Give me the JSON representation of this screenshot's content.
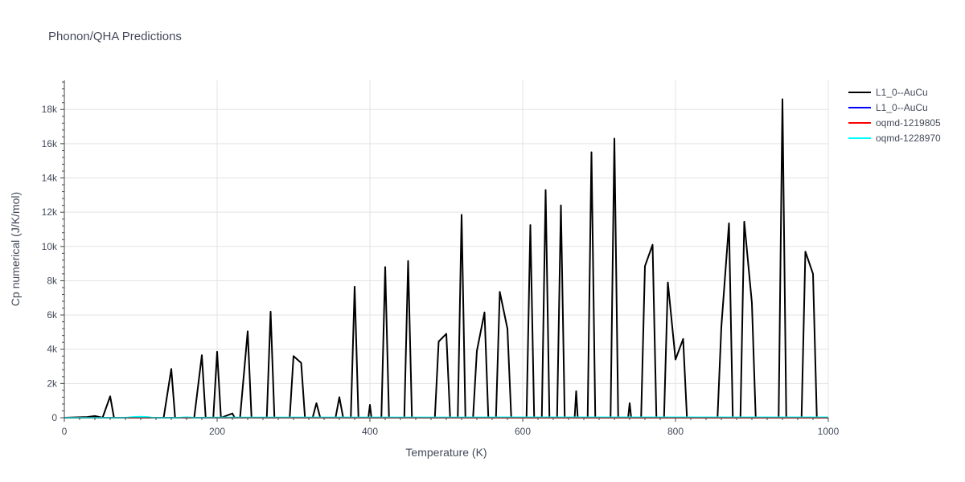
{
  "chart_data": {
    "type": "line",
    "title": "Phonon/QHA Predictions",
    "xlabel": "Temperature (K)",
    "ylabel": "Cp numerical (J/K/mol)",
    "xlim": [
      0,
      1000
    ],
    "ylim": [
      0,
      19700
    ],
    "grid": true,
    "legend_position": "right",
    "x_ticks": [
      0,
      200,
      400,
      600,
      800,
      1000
    ],
    "x_tick_labels": [
      "0",
      "200",
      "400",
      "600",
      "800",
      "1000"
    ],
    "y_ticks": [
      0,
      2000,
      4000,
      6000,
      8000,
      10000,
      12000,
      14000,
      16000,
      18000
    ],
    "y_tick_labels": [
      "0",
      "2k",
      "4k",
      "6k",
      "8k",
      "10k",
      "12k",
      "14k",
      "16k",
      "18k"
    ],
    "series": [
      {
        "name": "L1_0--AuCu",
        "color": "#000000",
        "points": [
          [
            0,
            0
          ],
          [
            30,
            40
          ],
          [
            40,
            100
          ],
          [
            50,
            0
          ],
          [
            60,
            1250
          ],
          [
            65,
            0
          ],
          [
            80,
            0
          ],
          [
            100,
            0
          ],
          [
            130,
            0
          ],
          [
            140,
            2850
          ],
          [
            145,
            0
          ],
          [
            170,
            0
          ],
          [
            180,
            3650
          ],
          [
            185,
            0
          ],
          [
            195,
            0
          ],
          [
            200,
            3850
          ],
          [
            205,
            0
          ],
          [
            220,
            250
          ],
          [
            223,
            0
          ],
          [
            230,
            0
          ],
          [
            240,
            5050
          ],
          [
            245,
            0
          ],
          [
            265,
            0
          ],
          [
            270,
            6200
          ],
          [
            275,
            0
          ],
          [
            295,
            0
          ],
          [
            300,
            3600
          ],
          [
            310,
            3200
          ],
          [
            315,
            0
          ],
          [
            325,
            0
          ],
          [
            330,
            850
          ],
          [
            335,
            0
          ],
          [
            355,
            0
          ],
          [
            360,
            1200
          ],
          [
            365,
            0
          ],
          [
            375,
            0
          ],
          [
            380,
            7650
          ],
          [
            385,
            0
          ],
          [
            398,
            0
          ],
          [
            400,
            750
          ],
          [
            402,
            0
          ],
          [
            415,
            0
          ],
          [
            420,
            8800
          ],
          [
            425,
            0
          ],
          [
            445,
            0
          ],
          [
            450,
            9150
          ],
          [
            455,
            0
          ],
          [
            485,
            0
          ],
          [
            490,
            4450
          ],
          [
            500,
            4900
          ],
          [
            505,
            0
          ],
          [
            515,
            0
          ],
          [
            520,
            11850
          ],
          [
            525,
            0
          ],
          [
            535,
            0
          ],
          [
            540,
            3900
          ],
          [
            550,
            6150
          ],
          [
            555,
            0
          ],
          [
            565,
            0
          ],
          [
            570,
            7350
          ],
          [
            580,
            5200
          ],
          [
            585,
            0
          ],
          [
            605,
            0
          ],
          [
            610,
            11250
          ],
          [
            615,
            0
          ],
          [
            625,
            0
          ],
          [
            630,
            13300
          ],
          [
            635,
            0
          ],
          [
            645,
            0
          ],
          [
            650,
            12400
          ],
          [
            655,
            0
          ],
          [
            668,
            0
          ],
          [
            670,
            1550
          ],
          [
            672,
            0
          ],
          [
            685,
            0
          ],
          [
            690,
            15500
          ],
          [
            695,
            0
          ],
          [
            715,
            0
          ],
          [
            720,
            16300
          ],
          [
            725,
            0
          ],
          [
            738,
            0
          ],
          [
            740,
            850
          ],
          [
            742,
            0
          ],
          [
            755,
            0
          ],
          [
            760,
            8850
          ],
          [
            770,
            10100
          ],
          [
            775,
            0
          ],
          [
            785,
            0
          ],
          [
            790,
            7900
          ],
          [
            800,
            3400
          ],
          [
            810,
            4600
          ],
          [
            815,
            0
          ],
          [
            855,
            0
          ],
          [
            860,
            5300
          ],
          [
            870,
            11350
          ],
          [
            875,
            0
          ],
          [
            885,
            0
          ],
          [
            890,
            11450
          ],
          [
            900,
            6700
          ],
          [
            905,
            0
          ],
          [
            935,
            0
          ],
          [
            940,
            18600
          ],
          [
            945,
            0
          ],
          [
            965,
            0
          ],
          [
            970,
            9700
          ],
          [
            980,
            8400
          ],
          [
            985,
            0
          ],
          [
            1000,
            0
          ]
        ]
      },
      {
        "name": "L1_0--AuCu",
        "color": "#0000ff",
        "points": [
          [
            0,
            0
          ],
          [
            1000,
            0
          ]
        ]
      },
      {
        "name": "oqmd-1219805",
        "color": "#ff0000",
        "points": [
          [
            0,
            0
          ],
          [
            1000,
            0
          ]
        ]
      },
      {
        "name": "oqmd-1228970",
        "color": "#00ffff",
        "points": [
          [
            0,
            0
          ],
          [
            80,
            0
          ],
          [
            90,
            40
          ],
          [
            100,
            60
          ],
          [
            110,
            40
          ],
          [
            115,
            0
          ],
          [
            150,
            0
          ],
          [
            160,
            30
          ],
          [
            170,
            0
          ],
          [
            200,
            10
          ],
          [
            300,
            15
          ],
          [
            400,
            20
          ],
          [
            500,
            20
          ],
          [
            600,
            25
          ],
          [
            700,
            25
          ],
          [
            800,
            25
          ],
          [
            900,
            25
          ],
          [
            1000,
            25
          ]
        ]
      }
    ]
  }
}
